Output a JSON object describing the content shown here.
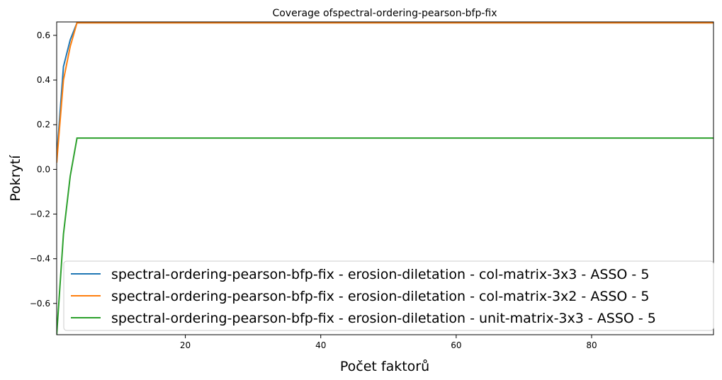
{
  "chart_data": {
    "type": "line",
    "title": "Coverage ofspectral-ordering-pearson-bfp-fix",
    "xlabel": "Počet faktorů",
    "ylabel": "Pokrytí",
    "xlim": [
      1,
      98
    ],
    "ylim": [
      -0.74,
      0.66
    ],
    "xticks": [
      20,
      40,
      60,
      80
    ],
    "yticks": [
      -0.6,
      -0.4,
      -0.2,
      0.0,
      0.2,
      0.4,
      0.6
    ],
    "ytick_labels": [
      "−0.6",
      "−0.4",
      "−0.2",
      "0.0",
      "0.2",
      "0.4",
      "0.6"
    ],
    "grid": false,
    "legend_position": "lower-right",
    "series": [
      {
        "name": "spectral-ordering-pearson-bfp-fix - erosion-diletation - col-matrix-3x3 - ASSO - 5",
        "color": "#1f77b4",
        "points": [
          [
            1,
            0.05
          ],
          [
            2,
            0.46
          ],
          [
            3,
            0.58
          ],
          [
            4,
            0.656
          ],
          [
            98,
            0.656
          ]
        ]
      },
      {
        "name": "spectral-ordering-pearson-bfp-fix - erosion-diletation - col-matrix-3x2 - ASSO - 5",
        "color": "#ff7f0e",
        "points": [
          [
            1,
            0.03
          ],
          [
            2,
            0.4
          ],
          [
            3,
            0.55
          ],
          [
            4,
            0.656
          ],
          [
            98,
            0.656
          ]
        ]
      },
      {
        "name": "spectral-ordering-pearson-bfp-fix - erosion-diletation - unit-matrix-3x3 - ASSO - 5",
        "color": "#2ca02c",
        "points": [
          [
            1,
            -0.74
          ],
          [
            2,
            -0.29
          ],
          [
            3,
            -0.03
          ],
          [
            4,
            0.14
          ],
          [
            98,
            0.14
          ]
        ]
      }
    ]
  }
}
